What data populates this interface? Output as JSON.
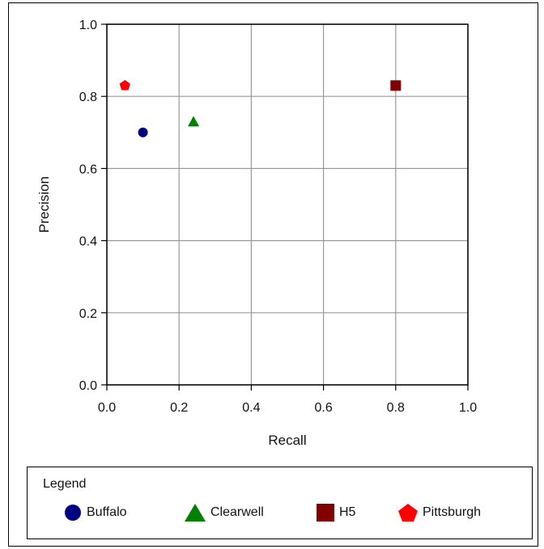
{
  "chart_data": {
    "type": "scatter",
    "title": "",
    "xlabel": "Recall",
    "ylabel": "Precision",
    "xlim": [
      0.0,
      1.0
    ],
    "ylim": [
      0.0,
      1.0
    ],
    "xticks": [
      "0.0",
      "0.2",
      "0.4",
      "0.6",
      "0.8",
      "1.0"
    ],
    "yticks": [
      "0.0",
      "0.2",
      "0.4",
      "0.6",
      "0.8",
      "1.0"
    ],
    "grid": true,
    "legend_placement": "bottom",
    "series": [
      {
        "name": "Buffalo",
        "marker": "circle",
        "color": "#000080",
        "x": [
          0.1
        ],
        "y": [
          0.7
        ]
      },
      {
        "name": "Clearwell",
        "marker": "triangle",
        "color": "#008000",
        "x": [
          0.24
        ],
        "y": [
          0.73
        ]
      },
      {
        "name": "H5",
        "marker": "square",
        "color": "#800000",
        "x": [
          0.8
        ],
        "y": [
          0.83
        ]
      },
      {
        "name": "Pittsburgh",
        "marker": "pentagon",
        "color": "#ff0000",
        "x": [
          0.05
        ],
        "y": [
          0.83
        ]
      }
    ]
  },
  "legend": {
    "title": "Legend"
  }
}
